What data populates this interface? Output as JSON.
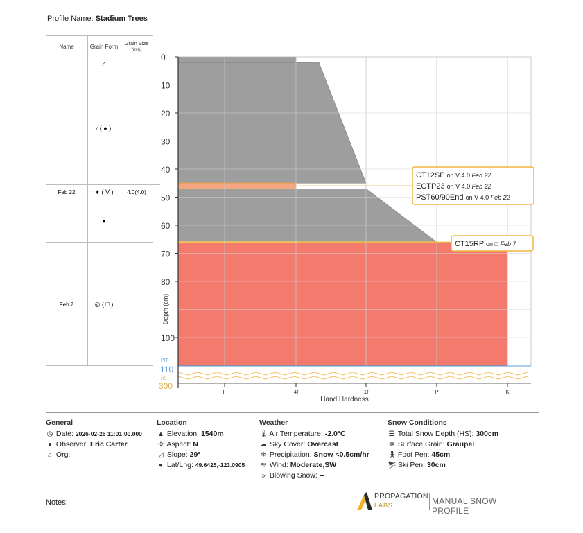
{
  "header": {
    "label": "Profile Name:",
    "value": "Stadium Trees"
  },
  "table": {
    "headers": {
      "name": "Name",
      "form": "Grain Form",
      "size": "Grain Size",
      "size_unit": "(mm)"
    },
    "rows": [
      {
        "name": "",
        "form": "⁄",
        "size": ""
      },
      {
        "name": "",
        "form": "⁄ ( ● )",
        "size": ""
      },
      {
        "name": "Feb 22",
        "form": "∗ ( V )",
        "size": "4.0(4.0)"
      },
      {
        "name": "",
        "form": "●",
        "size": ""
      },
      {
        "name": "Feb 7",
        "form": "◎ ( □ )",
        "size": ""
      }
    ]
  },
  "chart_data": {
    "type": "area",
    "y_axis": {
      "label": "Depth (cm)",
      "ticks": [
        0,
        10,
        20,
        30,
        40,
        50,
        60,
        70,
        80,
        100,
        110
      ],
      "range": [
        0,
        110
      ],
      "inverted": true,
      "pit_label": "PIT",
      "pit_value": 110,
      "hs_label": "HS",
      "hs_value": 300
    },
    "x_axis": {
      "label": "Hand Hardness",
      "ticks": [
        "F",
        "4f",
        "1f",
        "P",
        "K"
      ]
    },
    "layers": [
      {
        "top": 0,
        "bottom": 2,
        "hardness": "4f",
        "color": "#9e9e9e"
      },
      {
        "top": 2,
        "bottom": 45,
        "hardness_top": "4f+",
        "hardness_bottom": "1f",
        "color": "#9e9e9e"
      },
      {
        "top": 45,
        "bottom": 47,
        "hardness": "4f",
        "color": "#f4a582"
      },
      {
        "top": 47,
        "bottom": 66,
        "hardness_top": "1f",
        "hardness_bottom": "P",
        "color": "#9e9e9e"
      },
      {
        "top": 66,
        "bottom": 110,
        "hardness": "K",
        "color": "#f47a6e"
      }
    ],
    "tests": [
      {
        "depth": 46,
        "lines": [
          {
            "code": "CT12SP",
            "on": "on",
            "grain": "V 4.0",
            "date": "Feb 22"
          },
          {
            "code": "ECTP23",
            "on": "on",
            "grain": "V 4.0",
            "date": "Feb 22"
          },
          {
            "code": "PST60/90End",
            "on": "on",
            "grain": "V 4.0",
            "date": "Feb 22"
          }
        ]
      },
      {
        "depth": 66,
        "lines": [
          {
            "code": "CT15RP",
            "on": "on",
            "grain": "□",
            "date": "Feb 7"
          }
        ]
      }
    ]
  },
  "info": {
    "general": {
      "title": "General",
      "date_label": "Date:",
      "date_value": "2026-02-26 11:01:00.000",
      "observer_label": "Observer:",
      "observer_value": "Eric Carter",
      "org_label": "Org:"
    },
    "location": {
      "title": "Location",
      "elev_label": "Elevation:",
      "elev_value": "1540m",
      "aspect_label": "Aspect:",
      "aspect_value": "N",
      "slope_label": "Slope:",
      "slope_value": "29°",
      "latlng_label": "Lat/Lng:",
      "latlng_value": "49.6425,-123.0905"
    },
    "weather": {
      "title": "Weather",
      "temp_label": "Air Temperature:",
      "temp_value": "-2.0°C",
      "sky_label": "Sky Cover:",
      "sky_value": "Overcast",
      "precip_label": "Precipitation:",
      "precip_value": "Snow <0.5cm/hr",
      "wind_label": "Wind:",
      "wind_value": "Moderate,SW",
      "blow_label": "Blowing Snow:",
      "blow_value": "--"
    },
    "snow": {
      "title": "Snow Conditions",
      "hs_label": "Total Snow Depth (HS):",
      "hs_value": "300cm",
      "grain_label": "Surface Grain:",
      "grain_value": "Graupel",
      "foot_label": "Foot Pen:",
      "foot_value": "45cm",
      "ski_label": "Ski Pen:",
      "ski_value": "30cm"
    }
  },
  "footer": {
    "notes": "Notes:",
    "brand1": "PROPAGATION",
    "brand2": "LABS",
    "brand3": "MANUAL SNOW PROFILE"
  }
}
